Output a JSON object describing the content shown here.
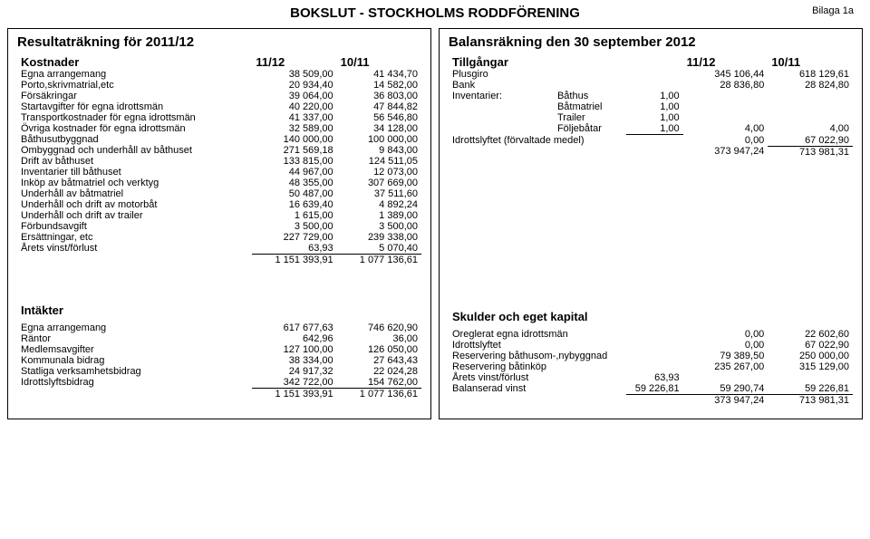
{
  "header": {
    "title": "BOKSLUT - STOCKHOLMS RODDFÖRENING",
    "bilaga": "Bilaga 1a"
  },
  "left": {
    "title": "Resultaträkning för 2011/12",
    "col_header_label": "Kostnader",
    "col_header_1": "11/12",
    "col_header_2": "10/11",
    "kostnader": [
      {
        "label": "Egna arrangemang",
        "v1": "38 509,00",
        "v2": "41 434,70"
      },
      {
        "label": "Porto,skrivmatrial,etc",
        "v1": "20 934,40",
        "v2": "14 582,00"
      },
      {
        "label": "Försäkringar",
        "v1": "39 064,00",
        "v2": "36 803,00"
      },
      {
        "label": "Startavgifter för egna idrottsmän",
        "v1": "40 220,00",
        "v2": "47 844,82"
      },
      {
        "label": "Transportkostnader för egna idrottsmän",
        "v1": "41 337,00",
        "v2": "56 546,80"
      },
      {
        "label": "Övriga kostnader för egna idrottsmän",
        "v1": "32 589,00",
        "v2": "34 128,00"
      },
      {
        "label": "Båthusutbyggnad",
        "v1": "140 000,00",
        "v2": "100 000,00"
      },
      {
        "label": "Ombyggnad och underhåll av båthuset",
        "v1": "271 569,18",
        "v2": "9 843,00"
      },
      {
        "label": "Drift av båthuset",
        "v1": "133 815,00",
        "v2": "124 511,05"
      },
      {
        "label": "Inventarier till båthuset",
        "v1": "44 967,00",
        "v2": "12 073,00"
      },
      {
        "label": "Inköp av båtmatriel och verktyg",
        "v1": "48 355,00",
        "v2": "307 669,00"
      },
      {
        "label": "Underhåll av båtmatriel",
        "v1": "50 487,00",
        "v2": "37 511,60"
      },
      {
        "label": "Underhåll och drift av motorbåt",
        "v1": "16 639,40",
        "v2": "4 892,24"
      },
      {
        "label": "Underhåll och drift av trailer",
        "v1": "1 615,00",
        "v2": "1 389,00"
      },
      {
        "label": "Förbundsavgift",
        "v1": "3 500,00",
        "v2": "3 500,00"
      },
      {
        "label": "Ersättningar, etc",
        "v1": "227 729,00",
        "v2": "239 338,00"
      },
      {
        "label": "Årets vinst/förlust",
        "v1": "63,93",
        "v2": "5 070,40",
        "underline": true
      }
    ],
    "kostnader_total": {
      "v1": "1 151 393,91",
      "v2": "1 077 136,61"
    },
    "intakter_header": "Intäkter",
    "intakter": [
      {
        "label": "Egna arrangemang",
        "v1": "617 677,63",
        "v2": "746 620,90"
      },
      {
        "label": "Räntor",
        "v1": "642,96",
        "v2": "36,00"
      },
      {
        "label": "Medlemsavgifter",
        "v1": "127 100,00",
        "v2": "126 050,00"
      },
      {
        "label": "Kommunala bidrag",
        "v1": "38 334,00",
        "v2": "27 643,43"
      },
      {
        "label": "Statliga verksamhetsbidrag",
        "v1": "24 917,32",
        "v2": "22 024,28"
      },
      {
        "label": "Idrottslyftsbidrag",
        "v1": "342 722,00",
        "v2": "154 762,00",
        "underline": true
      }
    ],
    "intakter_total": {
      "v1": "1 151 393,91",
      "v2": "1 077 136,61"
    }
  },
  "right": {
    "title": "Balansräkning den 30 september 2012",
    "col_header_label": "Tillgångar",
    "col_header_1": "11/12",
    "col_header_2": "10/11",
    "tillgangar_top": [
      {
        "label": "Plusgiro",
        "v1": "345 106,44",
        "v2": "618 129,61"
      },
      {
        "label": "Bank",
        "v1": "28 836,80",
        "v2": "28 824,80"
      }
    ],
    "inventarier_label": "Inventarier:",
    "inventarier": [
      {
        "name": "Båthus",
        "qty": "1,00",
        "v1": "",
        "v2": ""
      },
      {
        "name": "Båtmatriel",
        "qty": "1,00",
        "v1": "",
        "v2": ""
      },
      {
        "name": "Trailer",
        "qty": "1,00",
        "v1": "",
        "v2": ""
      },
      {
        "name": "Följebåtar",
        "qty": "1,00",
        "v1": "4,00",
        "v2": "4,00",
        "underline": true
      }
    ],
    "idrottslyftet": {
      "label": "Idrottslyftet (förvaltade medel)",
      "v1": "0,00",
      "v2": "67 022,90"
    },
    "tillgangar_total": {
      "v1": "373 947,24",
      "v2": "713 981,31"
    },
    "skulder_header": "Skulder och eget kapital",
    "skulder": [
      {
        "label": "Oreglerat egna idrottsmän",
        "v1": "0,00",
        "v2": "22 602,60"
      },
      {
        "label": "Idrottslyftet",
        "v1": "0,00",
        "v2": "67 022,90"
      },
      {
        "label": "Reservering båthusom-,nybyggnad",
        "v1": "79 389,50",
        "v2": "250 000,00"
      },
      {
        "label": "Reservering båtinköp",
        "v1": "235 267,00",
        "v2": "315 129,00"
      }
    ],
    "arets_vinst": {
      "label": "Årets vinst/förlust",
      "mid": "63,93"
    },
    "balanserad": {
      "label": "Balanserad vinst",
      "mid": "59 226,81",
      "v1": "59 290,74",
      "v2": "59 226,81"
    },
    "skulder_total": {
      "v1": "373 947,24",
      "v2": "713 981,31"
    }
  }
}
